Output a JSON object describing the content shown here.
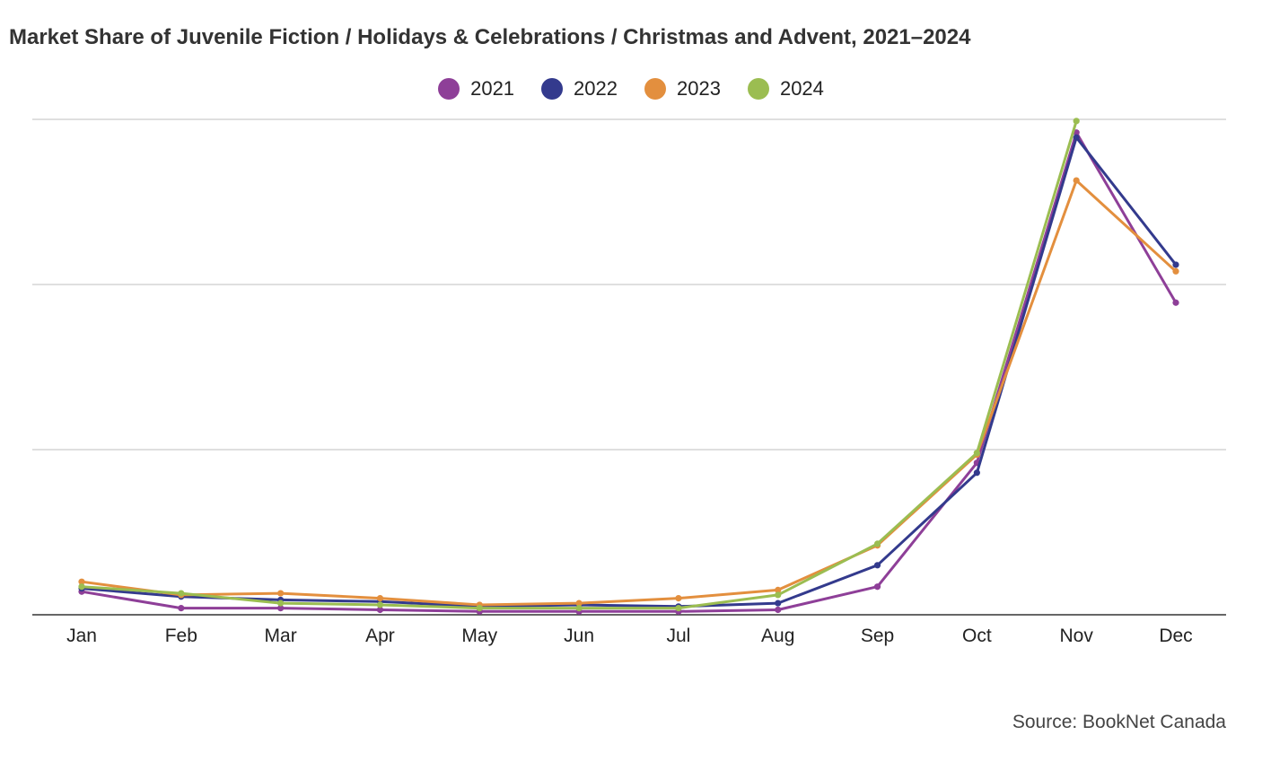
{
  "chart_data": {
    "type": "line",
    "title": "Market Share of Juvenile Fiction / Holidays & Celebrations / Christmas and Advent, 2021–2024",
    "xlabel": "",
    "ylabel": "",
    "categories": [
      "Jan",
      "Feb",
      "Mar",
      "Apr",
      "May",
      "Jun",
      "Jul",
      "Aug",
      "Sep",
      "Oct",
      "Nov",
      "Dec"
    ],
    "ylim": [
      0,
      3
    ],
    "yticks": [
      0,
      1,
      2,
      3
    ],
    "y_tick_labels_shown": false,
    "grid": true,
    "legend_position": "top-center",
    "series": [
      {
        "name": "2021",
        "color": "#8e3f98",
        "values": [
          0.14,
          0.04,
          0.04,
          0.03,
          0.02,
          0.02,
          0.02,
          0.03,
          0.17,
          0.92,
          2.92,
          1.89
        ]
      },
      {
        "name": "2022",
        "color": "#333a8d",
        "values": [
          0.16,
          0.11,
          0.09,
          0.08,
          0.05,
          0.06,
          0.05,
          0.07,
          0.3,
          0.86,
          2.89,
          2.12
        ]
      },
      {
        "name": "2023",
        "color": "#e38f3e",
        "values": [
          0.2,
          0.12,
          0.13,
          0.1,
          0.06,
          0.07,
          0.1,
          0.15,
          0.42,
          0.97,
          2.63,
          2.08
        ]
      },
      {
        "name": "2024",
        "color": "#9bbd51",
        "values": [
          0.17,
          0.13,
          0.07,
          0.06,
          0.04,
          0.04,
          0.04,
          0.12,
          0.43,
          0.98,
          2.99,
          null
        ]
      }
    ],
    "source": "Source: BookNet Canada"
  }
}
